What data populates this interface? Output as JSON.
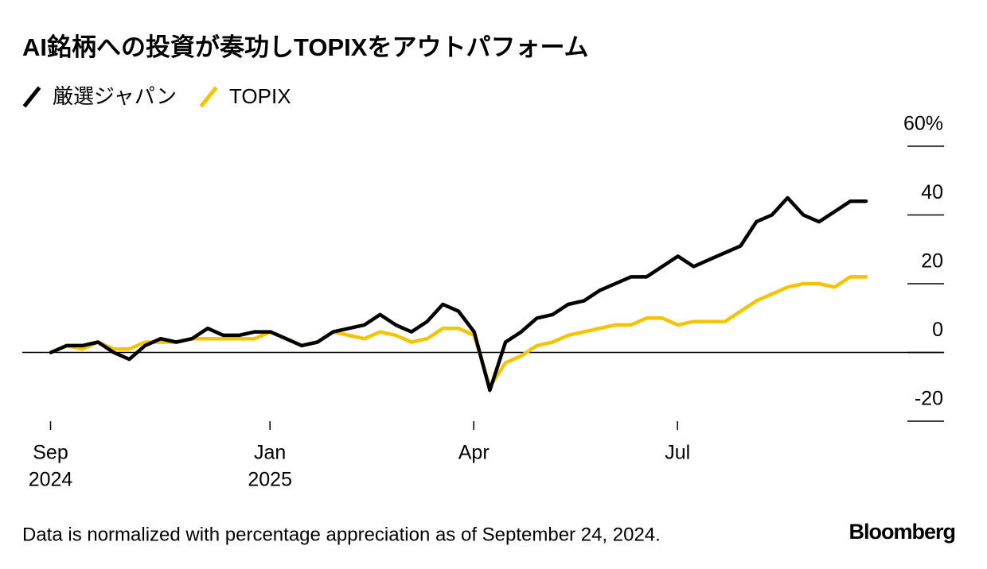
{
  "chart_data": {
    "type": "line",
    "title": "AI銘柄への投資が奏功しTOPIXをアウトパフォーム",
    "footnote": "Data is normalized with percentage appreciation as of September 24, 2024.",
    "source": "Bloomberg",
    "categories": [
      "Sep",
      null,
      null,
      null,
      null,
      null,
      null,
      null,
      null,
      null,
      null,
      null,
      null,
      null,
      "Jan",
      null,
      null,
      null,
      null,
      null,
      null,
      null,
      null,
      null,
      null,
      null,
      null,
      "Apr",
      null,
      null,
      null,
      null,
      null,
      null,
      null,
      null,
      null,
      null,
      null,
      null,
      "Jul",
      null,
      null,
      null,
      null,
      null,
      null,
      null,
      null,
      null,
      null,
      null,
      null
    ],
    "years": [
      "2024",
      null,
      null,
      null,
      null,
      null,
      null,
      null,
      null,
      null,
      null,
      null,
      null,
      null,
      "2025",
      null,
      null,
      null,
      null,
      null,
      null,
      null,
      null,
      null,
      null,
      null,
      null,
      null,
      null,
      null,
      null,
      null,
      null,
      null,
      null,
      null,
      null,
      null,
      null,
      null,
      null,
      null,
      null,
      null,
      null,
      null,
      null,
      null,
      null,
      null,
      null,
      null,
      null
    ],
    "series": [
      {
        "name": "厳選ジャパン",
        "color": "#000000",
        "values": [
          0,
          2,
          2,
          3,
          0,
          -2,
          2,
          4,
          3,
          4,
          7,
          5,
          5,
          6,
          6,
          4,
          2,
          3,
          6,
          7,
          8,
          11,
          8,
          6,
          9,
          14,
          12,
          6,
          -11,
          3,
          6,
          10,
          11,
          14,
          15,
          18,
          20,
          22,
          22,
          25,
          28,
          25,
          27,
          29,
          31,
          38,
          40,
          45,
          40,
          38,
          41,
          44,
          44
        ]
      },
      {
        "name": "TOPIX",
        "color": "#f5c400",
        "values": [
          0,
          2,
          1,
          3,
          1,
          1,
          3,
          3,
          3,
          4,
          4,
          4,
          4,
          4,
          6,
          4,
          2,
          3,
          6,
          5,
          4,
          6,
          5,
          3,
          4,
          7,
          7,
          5,
          -10,
          -3,
          -1,
          2,
          3,
          5,
          6,
          7,
          8,
          8,
          10,
          10,
          8,
          9,
          9,
          9,
          12,
          15,
          17,
          19,
          20,
          20,
          19,
          22,
          22
        ]
      }
    ],
    "ylim": [
      -20,
      60
    ],
    "yticks": [
      -20,
      0,
      20,
      40,
      {
        "value": 60,
        "label": "60%"
      }
    ]
  }
}
